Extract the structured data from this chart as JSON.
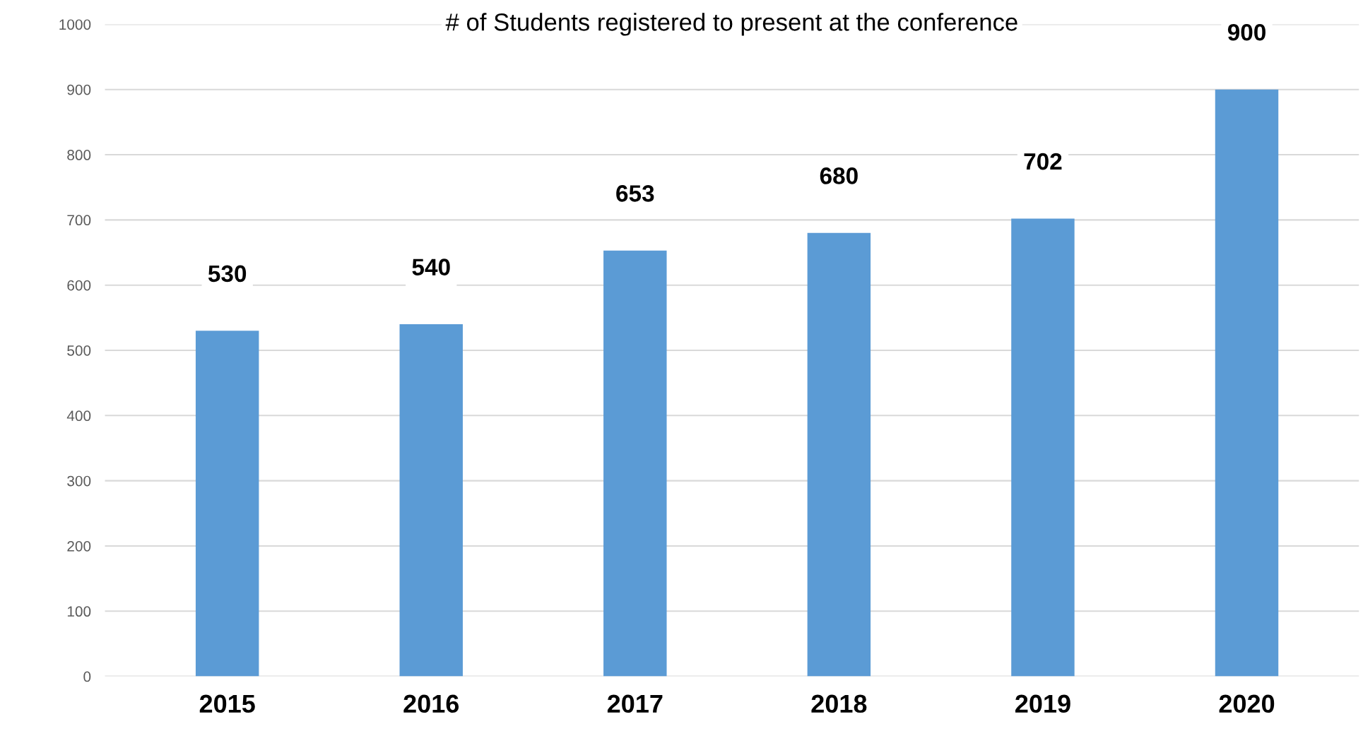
{
  "chart_data": {
    "type": "bar",
    "title": "# of Students registered to present at the conference",
    "categories": [
      "2015",
      "2016",
      "2017",
      "2018",
      "2019",
      "2020"
    ],
    "values": [
      530,
      540,
      653,
      680,
      702,
      900
    ],
    "color": "#5b9bd5",
    "ylim": [
      0,
      1000
    ],
    "yticks": [
      0,
      100,
      200,
      300,
      400,
      500,
      600,
      700,
      800,
      900,
      1000
    ],
    "grid": "y",
    "data_labels": true
  }
}
